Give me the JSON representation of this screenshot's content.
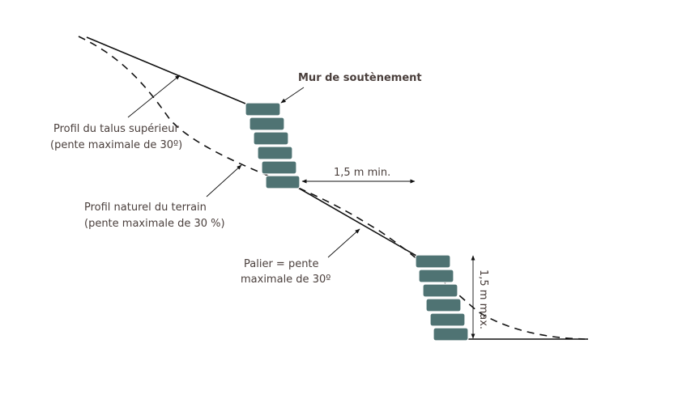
{
  "labels": {
    "retaining_wall": "Mur de soutènement",
    "upper_slope_line1": "Profil du talus supérieur",
    "upper_slope_line2": "(pente maximale de 30º)",
    "natural_ground_line1": "Profil naturel du terrain",
    "natural_ground_line2": "(pente maximale de 30 %)",
    "landing_line1": "Palier = pente",
    "landing_line2": "maximale de 30º",
    "min_distance": "1,5 m min.",
    "max_height": "1,5 m max."
  },
  "colors": {
    "block": "#4f7373",
    "line": "#111111",
    "text": "#4a3f3c"
  }
}
